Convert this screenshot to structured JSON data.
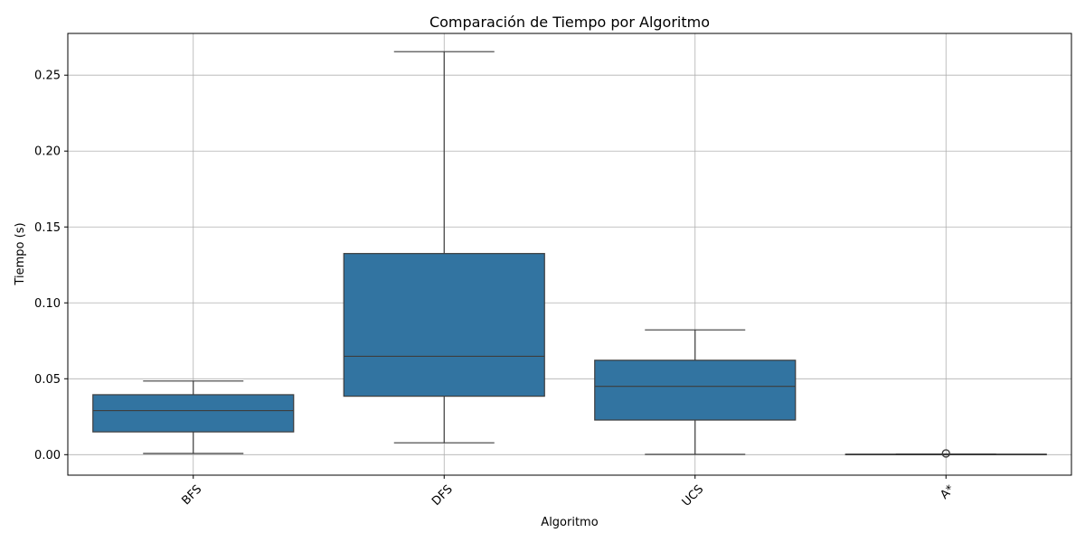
{
  "chart_data": {
    "type": "box",
    "title": "Comparación de Tiempo por Algoritmo",
    "xlabel": "Algoritmo",
    "ylabel": "Tiempo (s)",
    "categories": [
      "BFS",
      "DFS",
      "UCS",
      "A*"
    ],
    "ylim": [
      -0.0135,
      0.2775
    ],
    "yticks": [
      0.0,
      0.05,
      0.1,
      0.15,
      0.2,
      0.25
    ],
    "ytick_labels": [
      "0.00",
      "0.05",
      "0.10",
      "0.15",
      "0.20",
      "0.25"
    ],
    "grid": true,
    "box_color": "#3274a1",
    "boxes": [
      {
        "name": "BFS",
        "whislo": 0.0008,
        "q1": 0.015,
        "med": 0.029,
        "q3": 0.0395,
        "whishi": 0.0485,
        "fliers": []
      },
      {
        "name": "DFS",
        "whislo": 0.0078,
        "q1": 0.0385,
        "med": 0.0648,
        "q3": 0.1325,
        "whishi": 0.2655,
        "fliers": []
      },
      {
        "name": "UCS",
        "whislo": 0.0002,
        "q1": 0.0228,
        "med": 0.045,
        "q3": 0.0622,
        "whishi": 0.0822,
        "fliers": []
      },
      {
        "name": "A*",
        "whislo": 0.0,
        "q1": 0.0001,
        "med": 0.0002,
        "q3": 0.0003,
        "whishi": 0.0004,
        "fliers": [
          0.0008
        ]
      }
    ]
  }
}
